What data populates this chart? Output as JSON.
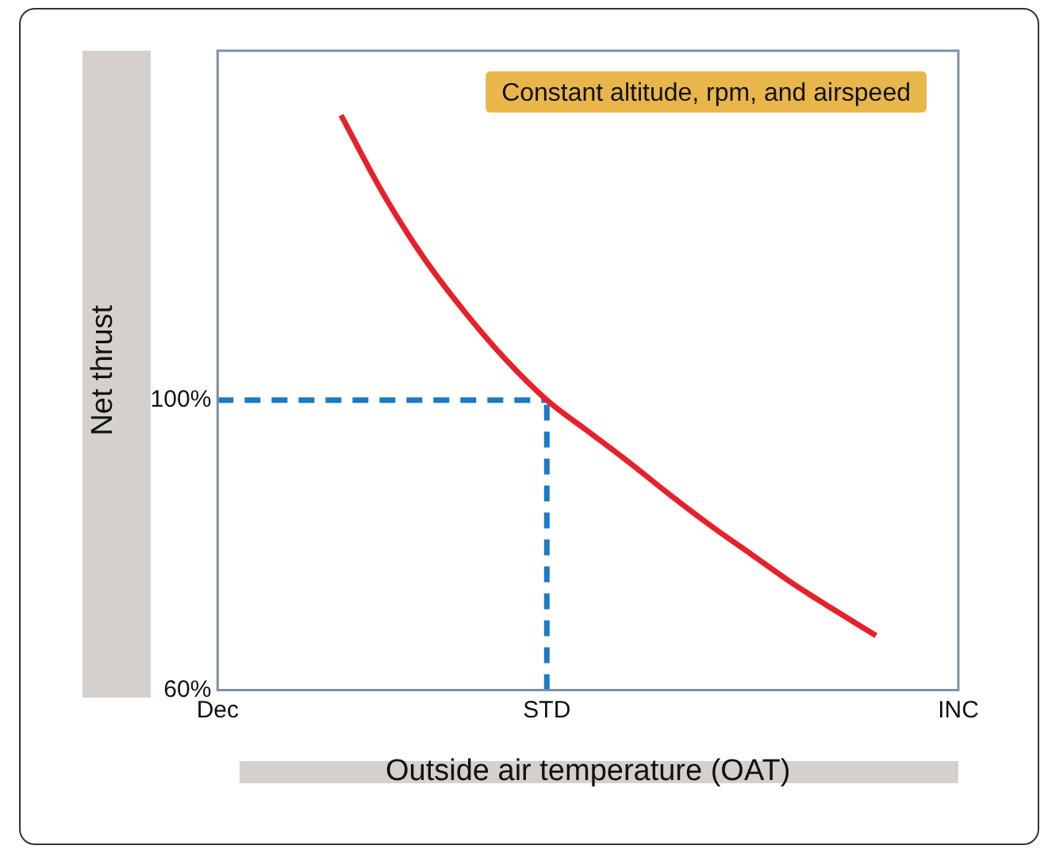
{
  "chart_data": {
    "type": "line",
    "xlabel": "Outside air temperature (OAT)",
    "ylabel": "Net thrust",
    "annotations": [
      "Constant altitude, rpm, and airspeed"
    ],
    "categories": [
      "Dec",
      null,
      null,
      null,
      null,
      null,
      null,
      null,
      "STD",
      null,
      null,
      null,
      null,
      null,
      null,
      null,
      null,
      null,
      "INC"
    ],
    "series": [
      {
        "color": "#e8202a",
        "values": [
          null,
          null,
          null,
          139.3,
          128.7,
          119.7,
          112.2,
          105.6,
          100,
          95.7,
          91.4,
          86.9,
          82.6,
          78.6,
          74.6,
          71.0,
          67.5,
          null,
          null
        ]
      }
    ],
    "ylim": [
      60,
      148.2
    ],
    "yticks": [
      {
        "value": 60,
        "label": "60%"
      },
      {
        "value": 100,
        "label": "100%"
      }
    ],
    "ref_lines": [
      {
        "axis": "y",
        "value": 100,
        "color": "#1a7bc4",
        "line_style": "dashed"
      },
      {
        "axis": "x",
        "value": "STD",
        "color": "#1a7bc4",
        "line_style": "dashed"
      }
    ],
    "grid": false,
    "legend": false,
    "marker": "none",
    "line_style": "solid"
  }
}
